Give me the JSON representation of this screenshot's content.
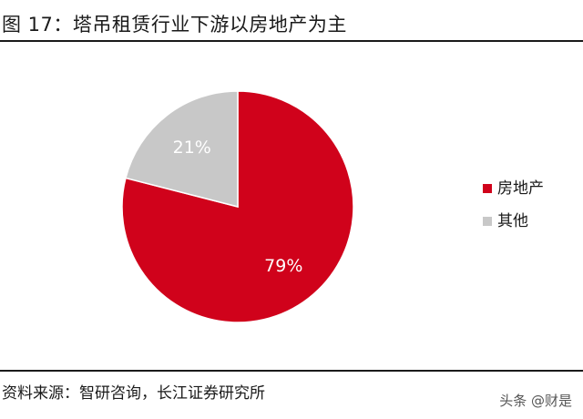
{
  "figure": {
    "title": "图 17：塔吊租赁行业下游以房地产为主",
    "source": "资料来源：智研咨询，长江证券研究所"
  },
  "watermark": "头条 @财是",
  "chart_data": {
    "type": "pie",
    "slices": [
      {
        "name": "房地产",
        "value": 79,
        "label": "79%",
        "color": "#d0021b"
      },
      {
        "name": "其他",
        "value": 21,
        "label": "21%",
        "color": "#c8c8c8"
      }
    ],
    "start": "12 o'clock",
    "direction": "clockwise",
    "legend": {
      "position": "right",
      "entries": [
        "房地产",
        "其他"
      ]
    },
    "slice_border": "#ffffff"
  }
}
